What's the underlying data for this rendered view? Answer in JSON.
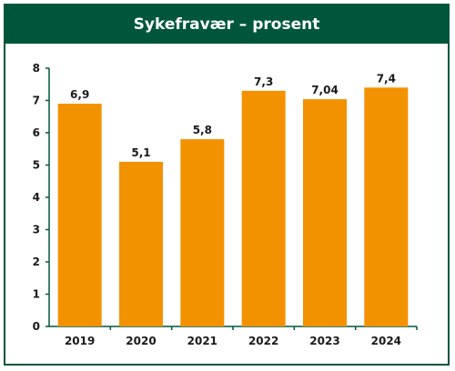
{
  "chart_data": {
    "type": "bar",
    "title": "Sykefravær – prosent",
    "categories": [
      "2019",
      "2020",
      "2021",
      "2022",
      "2023",
      "2024"
    ],
    "values": [
      6.9,
      5.1,
      5.8,
      7.3,
      7.04,
      7.4
    ],
    "data_labels": [
      "6,9",
      "5,1",
      "5,8",
      "7,3",
      "7,04",
      "7,4"
    ],
    "y_ticks": [
      "0",
      "1",
      "2",
      "3",
      "4",
      "5",
      "6",
      "7",
      "8"
    ],
    "ylim": [
      0,
      8
    ],
    "xlabel": "",
    "ylabel": "",
    "grid": false,
    "legend": "none",
    "colors": {
      "bar": "#f39200",
      "frame": "#00563b",
      "header": "#00563b"
    }
  }
}
